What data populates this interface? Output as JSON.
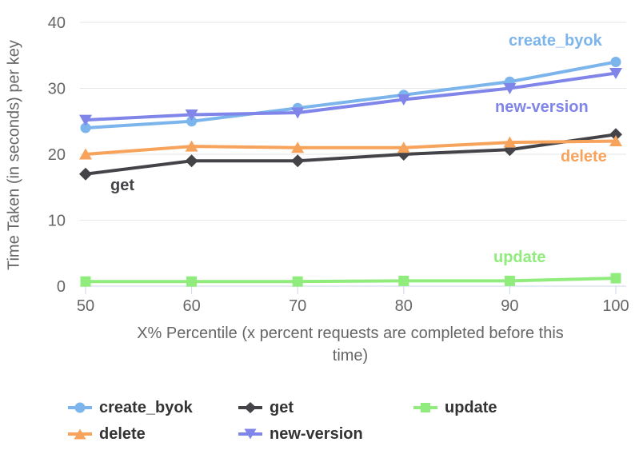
{
  "colors": {
    "background": "#ffffff",
    "grid_line": "#e6e6e6",
    "axis_line": "#ccd6eb",
    "tick_mark": "#ccd6eb",
    "axis_text": "#666666",
    "legend_text": "#333333"
  },
  "y_axis": {
    "title": "Time Taken (in seconds) per key",
    "ticks": [
      0,
      10,
      20,
      30,
      40
    ]
  },
  "x_axis": {
    "title": "X% Percentile (x percent requests are completed before this time)",
    "title_lines": [
      "X% Percentile (x percent requests are completed before this",
      "time)"
    ],
    "ticks": [
      50,
      60,
      70,
      80,
      90,
      100
    ]
  },
  "chart_data": {
    "type": "line",
    "title": "",
    "xlabel": "X% Percentile (x percent requests are completed before this time)",
    "ylabel": "Time Taken (in seconds) per key",
    "x": [
      50,
      60,
      70,
      80,
      90,
      100
    ],
    "xlim": [
      50,
      100
    ],
    "ylim": [
      0,
      40
    ],
    "grid": "horizontal",
    "legend_position": "bottom",
    "series": [
      {
        "name": "create_byok",
        "color": "#7cb5ec",
        "marker": "circle",
        "values": [
          24,
          25,
          27,
          29,
          31,
          34
        ]
      },
      {
        "name": "get",
        "color": "#434348",
        "marker": "diamond",
        "values": [
          17,
          19,
          19,
          20,
          20.7,
          23
        ]
      },
      {
        "name": "update",
        "color": "#90ed7d",
        "marker": "square",
        "values": [
          0.7,
          0.7,
          0.7,
          0.8,
          0.8,
          1.2
        ]
      },
      {
        "name": "delete",
        "color": "#f7a35c",
        "marker": "triangle-up",
        "values": [
          20,
          21.2,
          21,
          21,
          21.8,
          22
        ]
      },
      {
        "name": "new-version",
        "color": "#8085e9",
        "marker": "triangle-down",
        "values": [
          25.2,
          26,
          26.3,
          28.3,
          30,
          32.3
        ]
      }
    ]
  },
  "legend": {
    "order": [
      "create_byok",
      "get",
      "update",
      "delete",
      "new-version"
    ]
  }
}
